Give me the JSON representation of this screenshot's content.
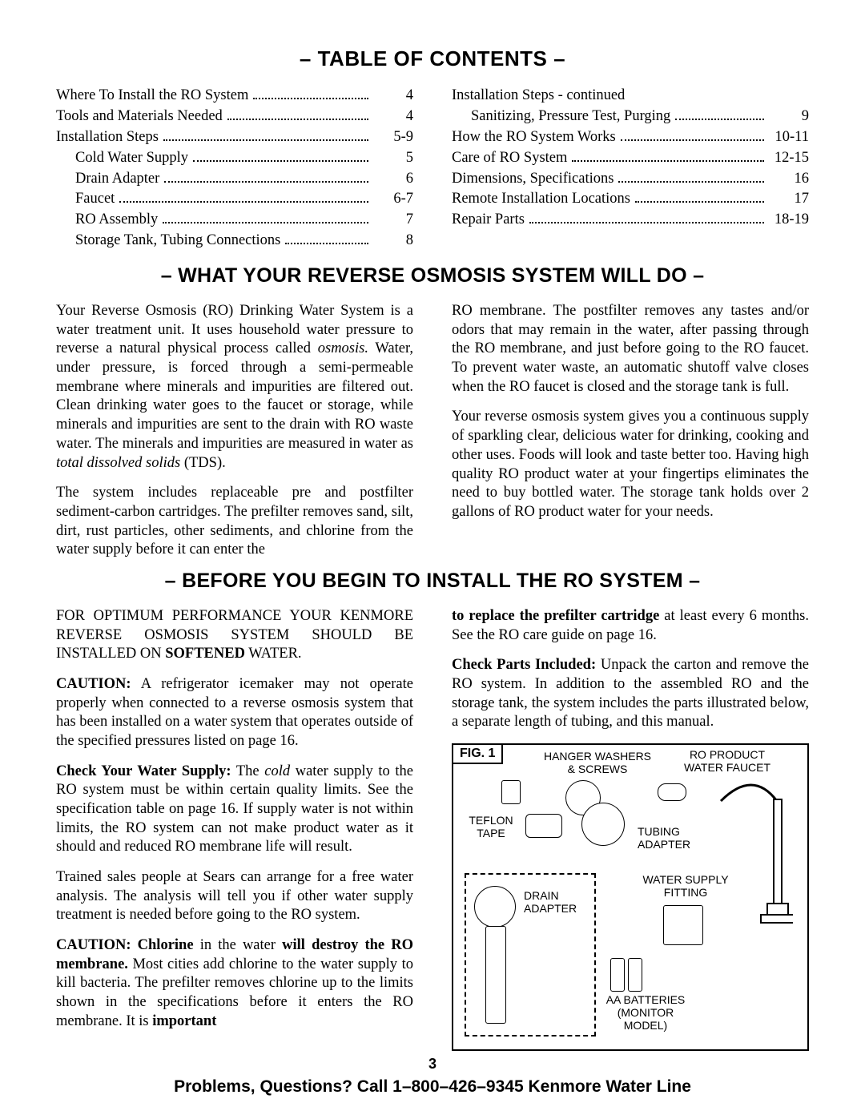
{
  "page_number": "3",
  "footer_help": "Problems, Questions? Call 1–800–426–9345 Kenmore Water Line",
  "sections": {
    "toc_title": "–  TABLE OF CONTENTS  –",
    "what_title": "–  WHAT YOUR REVERSE OSMOSIS SYSTEM WILL DO  –",
    "before_title": "–  BEFORE YOU BEGIN TO INSTALL THE RO SYSTEM  –"
  },
  "toc_left": [
    {
      "label": "Where To Install the RO System",
      "page": "4",
      "sub": false
    },
    {
      "label": "Tools and Materials Needed",
      "page": "4",
      "sub": false
    },
    {
      "label": "Installation Steps",
      "page": "5-9",
      "sub": false
    },
    {
      "label": "Cold Water Supply",
      "page": "5",
      "sub": true
    },
    {
      "label": "Drain Adapter",
      "page": "6",
      "sub": true
    },
    {
      "label": "Faucet",
      "page": "6-7",
      "sub": true
    },
    {
      "label": "RO Assembly",
      "page": "7",
      "sub": true
    },
    {
      "label": "Storage Tank, Tubing Connections",
      "page": "8",
      "sub": true
    }
  ],
  "toc_right": [
    {
      "label": "Installation Steps - continued",
      "page": "",
      "sub": false,
      "header": true
    },
    {
      "label": "Sanitizing, Pressure Test, Purging",
      "page": "9",
      "sub": true
    },
    {
      "label": "How the RO System Works",
      "page": "10-11",
      "sub": false
    },
    {
      "label": "Care of RO System",
      "page": "12-15",
      "sub": false
    },
    {
      "label": "Dimensions, Specifications",
      "page": "16",
      "sub": false
    },
    {
      "label": "Remote Installation Locations",
      "page": "17",
      "sub": false
    },
    {
      "label": "Repair Parts",
      "page": "18-19",
      "sub": false
    }
  ],
  "what": {
    "l1a": "Your Reverse Osmosis (RO) Drinking Water System is a water treatment unit. It uses household water pressure to reverse a natural physical process called ",
    "l1i": "osmosis.",
    "l1b": " Water, under pressure, is forced through a semi-permeable membrane where minerals and impurities are filtered out. Clean drinking water goes to the faucet or storage, while minerals and impurities are sent to the drain with RO waste water. The minerals and impurities are measured in water as ",
    "l1i2": "total dissolved solids",
    "l1c": " (TDS).",
    "l2": "The system includes replaceable pre and postfilter sediment-carbon cartridges. The prefilter removes sand, silt, dirt, rust particles, other sediments, and chlorine from the water supply before it can enter the",
    "r1": "RO membrane. The postfilter removes any tastes and/or odors that may remain in the water, after passing through the RO membrane, and just before going to the RO faucet. To prevent water waste, an automatic shutoff valve closes when the RO faucet is closed and the storage tank is full.",
    "r2": "Your reverse osmosis system gives you a continuous supply of sparkling clear, delicious water for drinking, cooking and other uses. Foods will look and taste better too. Having high quality RO product water at your fingertips eliminates the need to buy bottled water. The storage tank holds over 2 gallons of RO product water for your needs."
  },
  "before": {
    "l1a": "FOR OPTIMUM PERFORMANCE YOUR KENMORE REVERSE OSMOSIS SYSTEM SHOULD BE INSTALLED ON ",
    "l1b": "SOFTENED",
    "l1c": " WATER.",
    "l2a": "CAUTION:",
    "l2b": " A refrigerator icemaker may not operate properly when connected to a reverse osmosis system that has been installed on a water system that operates outside of the specified pressures listed on page 16.",
    "l3a": "Check Your Water Supply:",
    "l3b": " The ",
    "l3i": "cold",
    "l3c": " water supply to the RO system must be within certain quality limits. See the specification table on page 16. If supply water is not within limits, the RO system can not make product water as it should and reduced RO membrane life will result.",
    "l4": "Trained sales people at Sears can arrange for a free water analysis. The analysis will tell you if other water supply treatment is needed before going to the RO system.",
    "l5a": "CAUTION: Chlorine",
    "l5b": " in the water ",
    "l5c": "will destroy the RO membrane.",
    "l5d": " Most cities add chlorine to the water supply to kill bacteria. The prefilter removes chlorine up to the limits shown in the specifications before it enters the RO membrane. It is ",
    "l5e": "important",
    "r1a": "to replace the prefilter cartridge",
    "r1b": " at least every 6 months. See the RO care guide on page 16.",
    "r2a": "Check Parts Included:",
    "r2b": " Unpack the carton and remove the RO system. In addition to the assembled RO and the storage tank, the system includes the parts illustrated below, a separate length of tubing, and this manual."
  },
  "fig": {
    "label": "FIG. 1",
    "hanger": "HANGER WASHERS\n& SCREWS",
    "faucet": "RO PRODUCT\nWATER FAUCET",
    "teflon": "TEFLON\nTAPE",
    "tubing": "TUBING\nADAPTER",
    "drain": "DRAIN\nADAPTER",
    "supply": "WATER SUPPLY\nFITTING",
    "batt": "AA BATTERIES\n(MONITOR\nMODEL)"
  }
}
